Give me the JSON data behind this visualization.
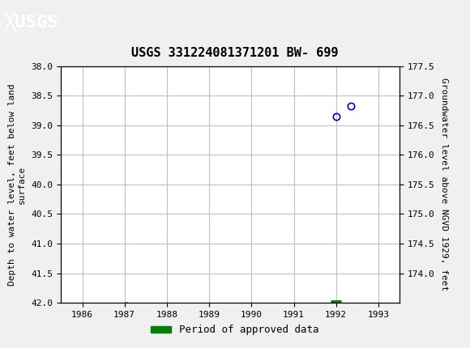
{
  "title": "USGS 331224081371201 BW- 699",
  "xlabel_years": [
    1986,
    1987,
    1988,
    1989,
    1990,
    1991,
    1992,
    1993
  ],
  "xlim": [
    1985.5,
    1993.5
  ],
  "ylim_left": [
    42.0,
    38.0
  ],
  "ylim_right": [
    173.5,
    177.5
  ],
  "yticks_left": [
    38.0,
    38.5,
    39.0,
    39.5,
    40.0,
    40.5,
    41.0,
    41.5,
    42.0
  ],
  "yticks_right": [
    174.0,
    174.5,
    175.0,
    175.5,
    176.0,
    176.5,
    177.0,
    177.5
  ],
  "ylabel_left": "Depth to water level, feet below land\nsurface",
  "ylabel_right": "Groundwater level above NGVD 1929, feet",
  "scatter_x": [
    1987.05,
    1992.0,
    1992.35
  ],
  "scatter_y": [
    42.05,
    38.85,
    38.68
  ],
  "scatter_color": "#0000cc",
  "bar_x_start": 1991.88,
  "bar_x_end": 1992.12,
  "bar_y": 42.0,
  "bar_color": "#008000",
  "header_color": "#1a6b3c",
  "background_color": "#f0f0f0",
  "plot_bg_color": "#ffffff",
  "grid_color": "#c0c0c0",
  "legend_label": "Period of approved data",
  "font_color": "#000000"
}
